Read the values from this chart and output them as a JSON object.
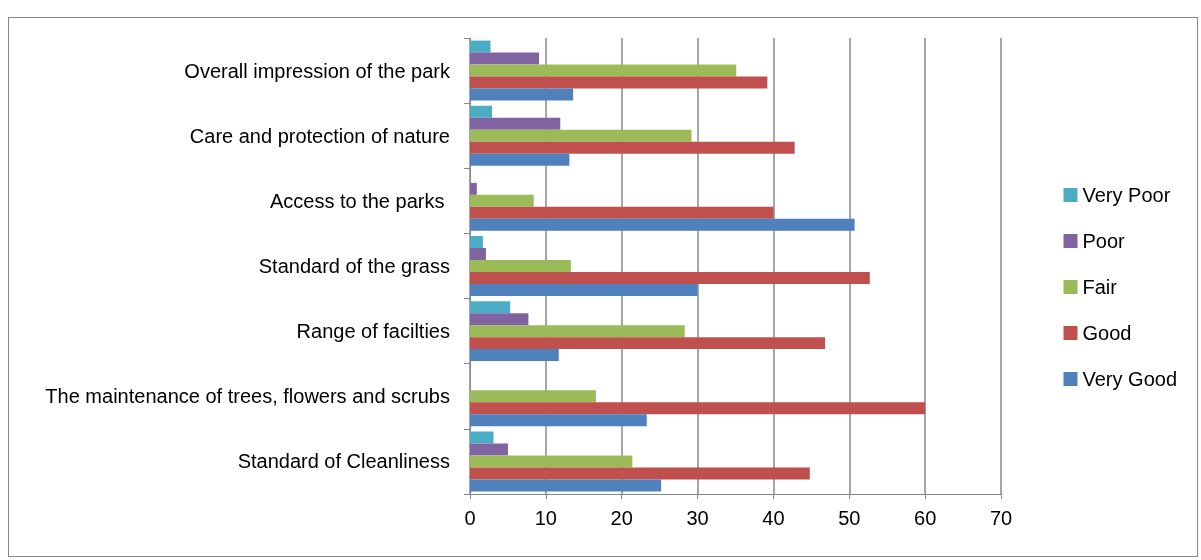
{
  "chart_data": {
    "type": "bar",
    "orientation": "horizontal",
    "categories": [
      "Overall impression of the park",
      "Care and protection of nature",
      "Access to the parks ",
      "Standard of the grass",
      "Range of facilties",
      "The maintenance of trees, flowers and scrubs",
      "Standard of Cleanliness"
    ],
    "series": [
      {
        "name": "Very Poor",
        "color": "#4bacc6",
        "values": [
          2.7,
          2.9,
          0,
          1.7,
          5.3,
          0,
          3.1
        ]
      },
      {
        "name": "Poor",
        "color": "#8064a2",
        "values": [
          9.1,
          11.9,
          0.9,
          2.1,
          7.7,
          0,
          5.0
        ]
      },
      {
        "name": "Fair",
        "color": "#9bbb59",
        "values": [
          35.1,
          29.2,
          8.4,
          13.3,
          28.3,
          16.6,
          21.4
        ]
      },
      {
        "name": "Good",
        "color": "#c0504d",
        "values": [
          39.2,
          42.8,
          40,
          52.7,
          46.8,
          60,
          44.8
        ]
      },
      {
        "name": "Very Good",
        "color": "#4f81bd",
        "values": [
          13.6,
          13.1,
          50.7,
          30,
          11.7,
          23.3,
          25.2
        ]
      }
    ],
    "xlim": [
      0,
      70
    ],
    "xticks": [
      0,
      10,
      20,
      30,
      40,
      50,
      60,
      70
    ],
    "grid": "x",
    "legend": "right"
  }
}
